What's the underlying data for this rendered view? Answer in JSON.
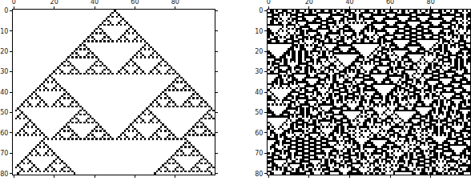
{
  "chart_data": [
    {
      "type": "heatmap",
      "rule": 90,
      "rows": 81,
      "initial_cells": [
        50
      ],
      "color": "#000000",
      "xlim": [
        -0.5,
        99.5
      ],
      "ylim": [
        80.5,
        -0.5
      ],
      "xticks": [
        0,
        20,
        40,
        60,
        80
      ],
      "yticks": [
        0,
        10,
        20,
        30,
        40,
        50,
        60,
        70,
        80
      ]
    },
    {
      "type": "heatmap",
      "rule": 90,
      "rows": 81,
      "initial_cells": [
        1,
        2,
        4,
        7,
        8,
        9,
        12,
        14,
        15,
        18,
        20,
        21,
        23,
        26,
        27,
        30,
        31,
        33,
        36,
        38,
        39,
        40,
        43,
        45,
        48,
        49,
        52,
        54,
        55,
        57,
        60,
        61,
        64,
        66,
        67,
        69,
        72,
        73,
        75,
        78,
        80,
        81,
        84,
        85,
        87,
        90,
        92,
        93,
        96,
        98
      ],
      "color": "#000000",
      "xlim": [
        -0.5,
        99.5
      ],
      "ylim": [
        80.5,
        -0.5
      ],
      "xticks": [
        0,
        20,
        40,
        60,
        80
      ],
      "yticks": [
        0,
        10,
        20,
        30,
        40,
        50,
        60,
        70,
        80
      ]
    }
  ]
}
